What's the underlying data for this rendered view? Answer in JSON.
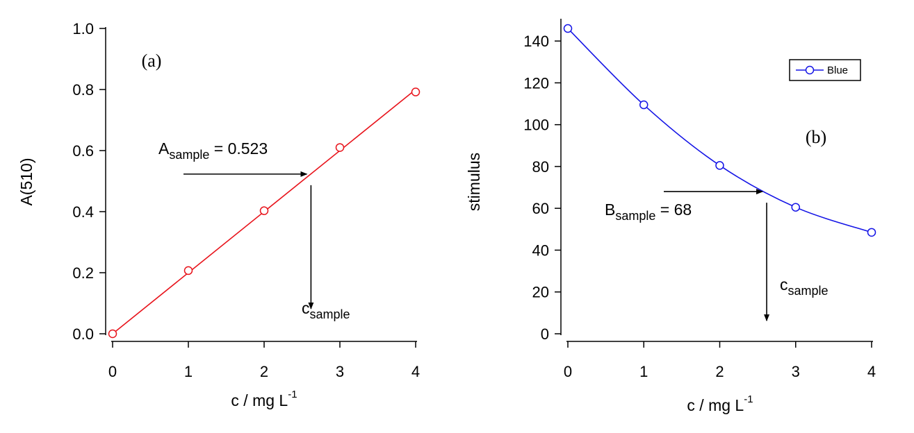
{
  "chart_data": [
    {
      "type": "line",
      "panel_label": "(a)",
      "xlabel": {
        "base": "c / mg L",
        "sup": "-1"
      },
      "ylabel": "A(510)",
      "xlim": [
        0,
        4
      ],
      "ylim": [
        0,
        1.0
      ],
      "x_ticks": [
        0,
        1,
        2,
        3,
        4
      ],
      "x_tick_labels": [
        "0",
        "1",
        "2",
        "3",
        "4"
      ],
      "y_ticks": [
        0,
        0.2,
        0.4,
        0.6,
        0.8,
        1.0
      ],
      "y_tick_labels": [
        "0.0",
        "0.2",
        "0.4",
        "0.6",
        "0.8",
        "1.0"
      ],
      "grid": false,
      "series": [
        {
          "x": [
            0,
            1,
            2,
            3,
            4
          ],
          "y": [
            0.0,
            0.207,
            0.403,
            0.61,
            0.792
          ],
          "color": "#e8131b",
          "marker": "open-circle",
          "line": "linear-fit"
        }
      ],
      "fit_line": {
        "x": [
          0,
          4
        ],
        "y": [
          0.0,
          0.8
        ]
      },
      "annotations": {
        "sample_label": {
          "main": "A",
          "sub": "sample",
          "rest": " = 0.523"
        },
        "sample_value": 0.523,
        "sample_c": 2.6,
        "result_label": {
          "main": "c",
          "sub": "sample"
        }
      }
    },
    {
      "type": "line",
      "panel_label": "(b)",
      "xlabel": {
        "base": "c / mg L",
        "sup": "-1"
      },
      "ylabel": "stimulus",
      "xlim": [
        0,
        4
      ],
      "ylim": [
        0,
        150
      ],
      "x_ticks": [
        0,
        1,
        2,
        3,
        4
      ],
      "x_tick_labels": [
        "0",
        "1",
        "2",
        "3",
        "4"
      ],
      "y_ticks": [
        0,
        20,
        40,
        60,
        80,
        100,
        120,
        140
      ],
      "y_tick_labels": [
        "0",
        "20",
        "40",
        "60",
        "80",
        "100",
        "120",
        "140"
      ],
      "grid": false,
      "legend": {
        "position": "top-right",
        "entries": [
          {
            "label": "Blue",
            "color": "#1414e6"
          }
        ]
      },
      "series": [
        {
          "name": "Blue",
          "x": [
            0,
            1,
            2,
            3,
            4
          ],
          "y": [
            146,
            109.5,
            80.5,
            60.5,
            48.5
          ],
          "color": "#1414e6",
          "marker": "open-circle",
          "line": "smooth"
        }
      ],
      "annotations": {
        "sample_label": {
          "main": "B",
          "sub": "sample",
          "rest": " = 68"
        },
        "sample_value": 68,
        "sample_c": 2.6,
        "result_label": {
          "main": "c",
          "sub": "sample"
        }
      }
    }
  ]
}
